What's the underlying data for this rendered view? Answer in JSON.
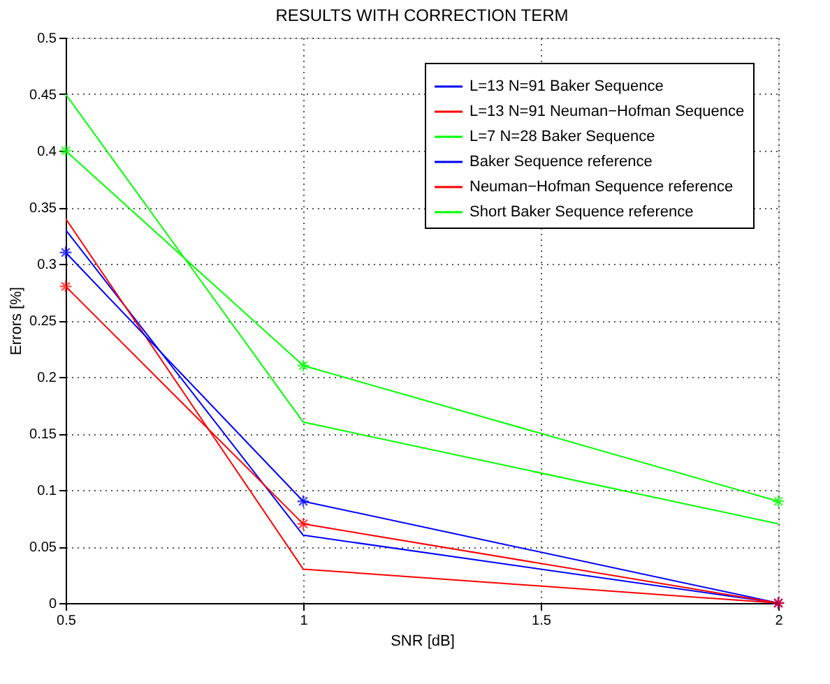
{
  "chart_data": {
    "type": "line",
    "title": "RESULTS WITH CORRECTION TERM",
    "xlabel": "SNR [dB]",
    "ylabel": "Errors [%]",
    "x": [
      0.5,
      1,
      2
    ],
    "series": [
      {
        "name": "L=13 N=91 Baker Sequence",
        "color": "#0000ff",
        "values": [
          0.33,
          0.06,
          0
        ],
        "marker": "none"
      },
      {
        "name": "L=13 N=91 Neuman−Hofman Sequence",
        "color": "#ff0000",
        "values": [
          0.34,
          0.03,
          0
        ],
        "marker": "none"
      },
      {
        "name": "L=7 N=28 Baker Sequence",
        "color": "#00ff00",
        "values": [
          0.45,
          0.16,
          0.07
        ],
        "marker": "none"
      },
      {
        "name": "Baker Sequence reference",
        "color": "#0000ff",
        "values": [
          0.31,
          0.09,
          0
        ],
        "marker": "cross"
      },
      {
        "name": "Neuman−Hofman Sequence reference",
        "color": "#ff0000",
        "values": [
          0.28,
          0.07,
          0
        ],
        "marker": "cross"
      },
      {
        "name": "Short Baker Sequence reference",
        "color": "#00ff00",
        "values": [
          0.4,
          0.21,
          0.09
        ],
        "marker": "cross"
      }
    ],
    "xlim": [
      0.5,
      2
    ],
    "xticks": [
      0.5,
      1,
      1.5,
      2
    ],
    "ylim": [
      0,
      0.5
    ],
    "yticks": [
      0,
      0.05,
      0.1,
      0.15,
      0.2,
      0.25,
      0.3,
      0.35,
      0.4,
      0.45,
      0.5
    ],
    "grid": true,
    "legend": "top right",
    "line_style": "solid"
  }
}
